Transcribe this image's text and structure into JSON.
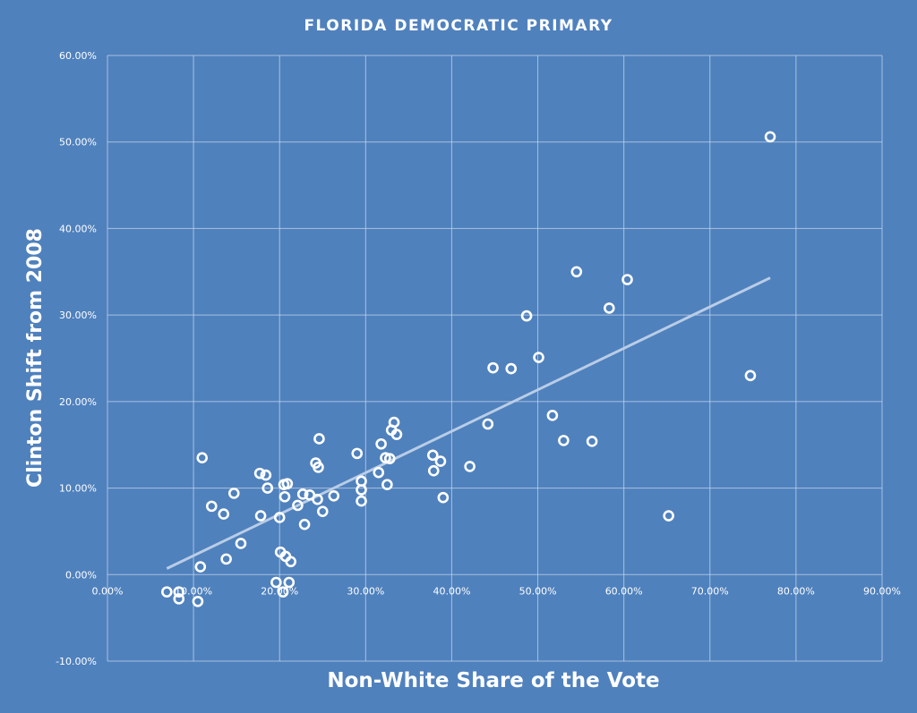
{
  "chart_data": {
    "type": "scatter",
    "title": "FLORIDA DEMOCRATIC PRIMARY",
    "xlabel": "Non-White Share of the Vote",
    "ylabel": "Clinton Shift from 2008",
    "xlim": [
      0,
      0.9
    ],
    "ylim": [
      -0.1,
      0.6
    ],
    "x_ticks": [
      0,
      0.1,
      0.2,
      0.3,
      0.4,
      0.5,
      0.6,
      0.7,
      0.8,
      0.9
    ],
    "x_tick_labels": [
      "0.00%",
      "10.00%",
      "20.00%",
      "30.00%",
      "40.00%",
      "50.00%",
      "60.00%",
      "70.00%",
      "80.00%",
      "90.00%"
    ],
    "y_ticks": [
      -0.1,
      0,
      0.1,
      0.2,
      0.3,
      0.4,
      0.5,
      0.6
    ],
    "y_tick_labels": [
      "-10.00%",
      "0.00%",
      "10.00%",
      "20.00%",
      "30.00%",
      "40.00%",
      "50.00%",
      "60.00%"
    ],
    "grid": true,
    "legend": "none",
    "colors": {
      "background": "#4f81bd",
      "marker": "#ffffff",
      "trendline": "#b9cde6",
      "grid": "#c7d6ea"
    },
    "series": [
      {
        "points": [
          [
            0.069,
            -0.02
          ],
          [
            0.083,
            -0.02
          ],
          [
            0.083,
            -0.028
          ],
          [
            0.105,
            -0.031
          ],
          [
            0.108,
            0.009
          ],
          [
            0.11,
            0.135
          ],
          [
            0.121,
            0.079
          ],
          [
            0.135,
            0.07
          ],
          [
            0.138,
            0.018
          ],
          [
            0.147,
            0.094
          ],
          [
            0.155,
            0.036
          ],
          [
            0.177,
            0.117
          ],
          [
            0.178,
            0.068
          ],
          [
            0.184,
            0.115
          ],
          [
            0.186,
            0.1
          ],
          [
            0.196,
            -0.009
          ],
          [
            0.2,
            0.066
          ],
          [
            0.201,
            0.026
          ],
          [
            0.204,
            -0.02
          ],
          [
            0.205,
            0.104
          ],
          [
            0.206,
            0.09
          ],
          [
            0.207,
            0.021
          ],
          [
            0.209,
            0.105
          ],
          [
            0.211,
            -0.009
          ],
          [
            0.213,
            0.015
          ],
          [
            0.221,
            0.08
          ],
          [
            0.227,
            0.093
          ],
          [
            0.229,
            0.058
          ],
          [
            0.235,
            0.092
          ],
          [
            0.242,
            0.129
          ],
          [
            0.244,
            0.087
          ],
          [
            0.245,
            0.124
          ],
          [
            0.246,
            0.157
          ],
          [
            0.25,
            0.073
          ],
          [
            0.263,
            0.091
          ],
          [
            0.29,
            0.14
          ],
          [
            0.295,
            0.108
          ],
          [
            0.295,
            0.098
          ],
          [
            0.295,
            0.085
          ],
          [
            0.315,
            0.118
          ],
          [
            0.318,
            0.151
          ],
          [
            0.323,
            0.135
          ],
          [
            0.325,
            0.104
          ],
          [
            0.328,
            0.134
          ],
          [
            0.33,
            0.167
          ],
          [
            0.333,
            0.176
          ],
          [
            0.336,
            0.162
          ],
          [
            0.378,
            0.138
          ],
          [
            0.379,
            0.12
          ],
          [
            0.387,
            0.131
          ],
          [
            0.39,
            0.089
          ],
          [
            0.421,
            0.125
          ],
          [
            0.442,
            0.174
          ],
          [
            0.448,
            0.239
          ],
          [
            0.469,
            0.238
          ],
          [
            0.487,
            0.299
          ],
          [
            0.501,
            0.251
          ],
          [
            0.517,
            0.184
          ],
          [
            0.53,
            0.155
          ],
          [
            0.545,
            0.35
          ],
          [
            0.563,
            0.154
          ],
          [
            0.583,
            0.308
          ],
          [
            0.604,
            0.341
          ],
          [
            0.652,
            0.068
          ],
          [
            0.747,
            0.23
          ],
          [
            0.77,
            0.506
          ]
        ]
      }
    ],
    "trendline": {
      "type": "linear",
      "x_range": [
        0.069,
        0.77
      ],
      "y_start": 0.007,
      "y_end": 0.343
    }
  }
}
